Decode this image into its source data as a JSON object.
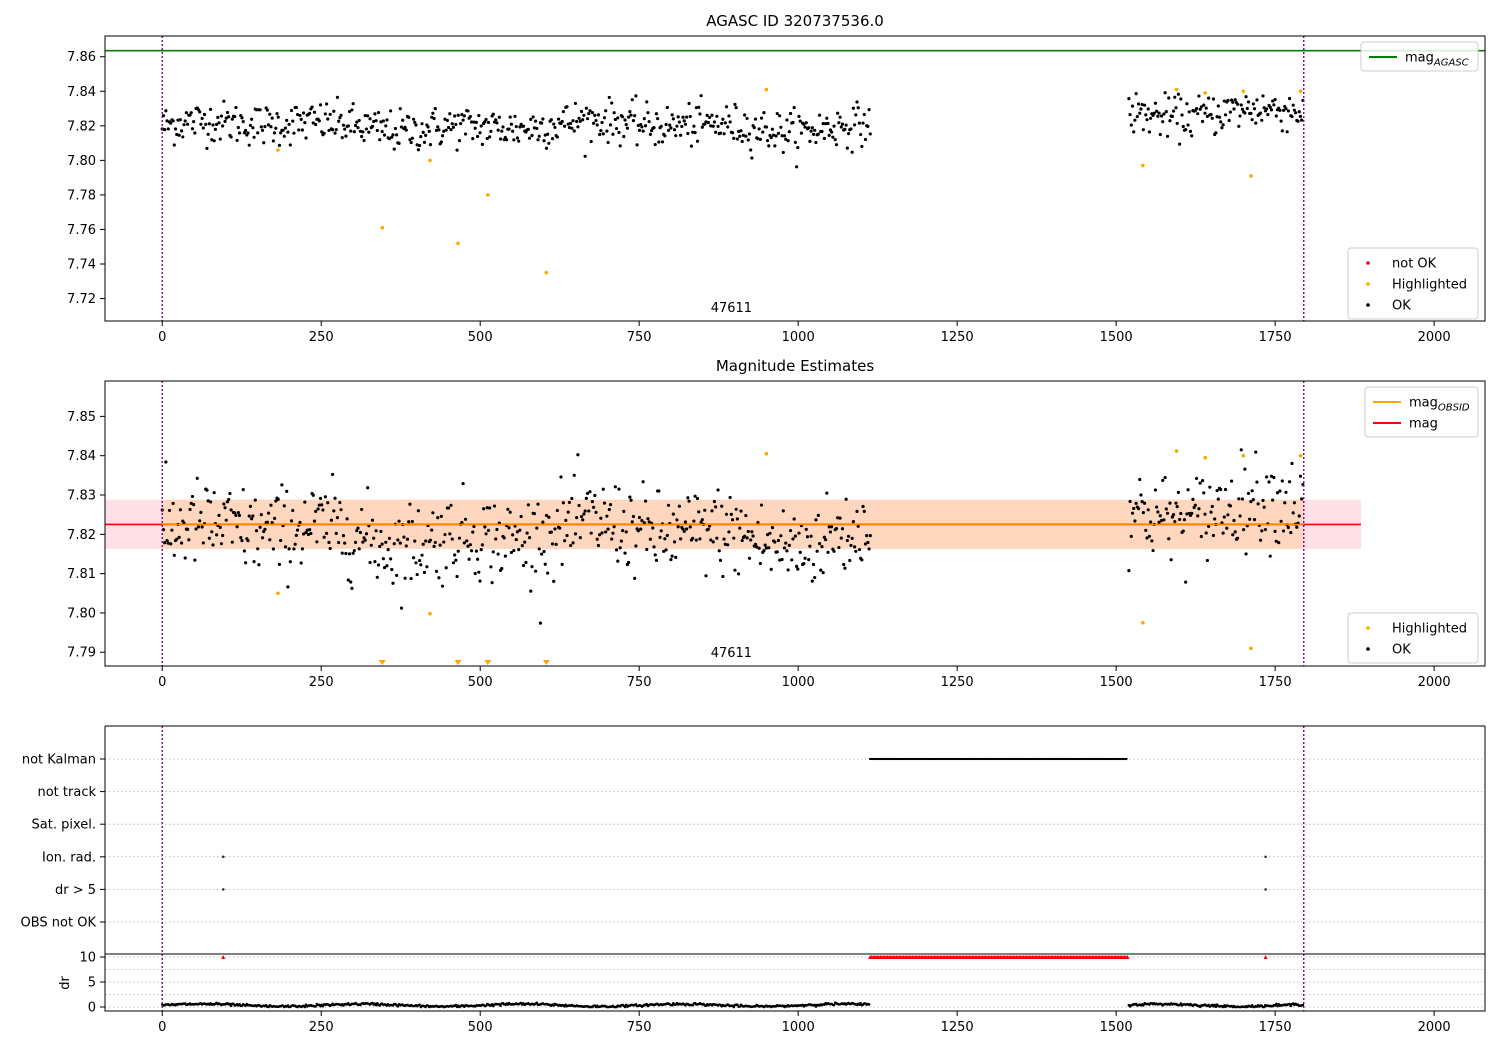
{
  "chart_data": [
    {
      "id": "top",
      "type": "scatter",
      "title": "AGASC ID 320737536.0",
      "xlim": [
        -90,
        2080
      ],
      "ylim": [
        7.707,
        7.872
      ],
      "xticks": [
        0,
        250,
        500,
        750,
        1000,
        1250,
        1500,
        1750,
        2000
      ],
      "yticks": [
        7.72,
        7.74,
        7.76,
        7.78,
        7.8,
        7.82,
        7.84,
        7.86
      ],
      "ytick_labels": [
        "7.72",
        "7.74",
        "7.76",
        "7.78",
        "7.80",
        "7.82",
        "7.84",
        "7.86"
      ],
      "obsid_label": {
        "text": "47611",
        "x": 895
      },
      "vlines": [
        0,
        1795
      ],
      "hline": {
        "name": "mag_AGASC",
        "y": 7.8635,
        "x0": -90,
        "x1": 2080,
        "color": "#008000"
      },
      "legend": {
        "top_right": [
          {
            "label": "mag",
            "sub": "AGASC",
            "color": "#008000",
            "kind": "line"
          }
        ],
        "bottom_right": [
          {
            "label": "not OK",
            "color": "#ff0000",
            "kind": "dot"
          },
          {
            "label": "Highlighted",
            "color": "#ffa500",
            "kind": "dot"
          },
          {
            "label": "OK",
            "color": "#000000",
            "kind": "dot"
          }
        ]
      },
      "ok_segments": [
        {
          "x0": 0,
          "x1": 1115,
          "center": 7.82,
          "spread": 0.006
        },
        {
          "x0": 1520,
          "x1": 1795,
          "center": 7.828,
          "spread": 0.006
        }
      ],
      "highlighted": [
        {
          "x": 182,
          "y": 7.806
        },
        {
          "x": 346,
          "y": 7.761
        },
        {
          "x": 421,
          "y": 7.8
        },
        {
          "x": 465,
          "y": 7.752
        },
        {
          "x": 512,
          "y": 7.78
        },
        {
          "x": 604,
          "y": 7.735
        },
        {
          "x": 950,
          "y": 7.841
        },
        {
          "x": 1542,
          "y": 7.797
        },
        {
          "x": 1595,
          "y": 7.841
        },
        {
          "x": 1640,
          "y": 7.839
        },
        {
          "x": 1700,
          "y": 7.84
        },
        {
          "x": 1712,
          "y": 7.791
        },
        {
          "x": 1790,
          "y": 7.84
        }
      ]
    },
    {
      "id": "middle",
      "type": "scatter",
      "title": "Magnitude Estimates",
      "xlim": [
        -90,
        2080
      ],
      "ylim": [
        7.7865,
        7.859
      ],
      "xticks": [
        0,
        250,
        500,
        750,
        1000,
        1250,
        1500,
        1750,
        2000
      ],
      "yticks": [
        7.79,
        7.8,
        7.81,
        7.82,
        7.83,
        7.84,
        7.85
      ],
      "ytick_labels": [
        "7.79",
        "7.80",
        "7.81",
        "7.82",
        "7.83",
        "7.84",
        "7.85"
      ],
      "obsid_label": {
        "text": "47611",
        "x": 895
      },
      "vlines": [
        0,
        1795
      ],
      "band": {
        "y0": 7.8163,
        "y1": 7.8288,
        "x0": -90,
        "x1": 1885
      },
      "band_inner": {
        "y0": 7.8163,
        "y1": 7.8288,
        "x0": 0,
        "x1": 1795
      },
      "hline_mag": {
        "y": 7.8225,
        "x0": -90,
        "x1": 1885,
        "color": "#ff0000"
      },
      "hline_obsid": {
        "y": 7.8225,
        "x0": 0,
        "x1": 1795,
        "color": "#ffa500"
      },
      "legend": {
        "top_right": [
          {
            "label": "mag",
            "sub": "OBSID",
            "color": "#ffa500",
            "kind": "line"
          },
          {
            "label": "mag",
            "sub": "",
            "color": "#ff0000",
            "kind": "line"
          }
        ],
        "bottom_right": [
          {
            "label": "Highlighted",
            "color": "#ffa500",
            "kind": "dot"
          },
          {
            "label": "OK",
            "color": "#000000",
            "kind": "dot"
          }
        ]
      },
      "ok_segments": [
        {
          "x0": 0,
          "x1": 1115,
          "center": 7.82,
          "spread": 0.0055
        },
        {
          "x0": 1520,
          "x1": 1795,
          "center": 7.827,
          "spread": 0.0055
        }
      ],
      "highlighted": [
        {
          "x": 182,
          "y": 7.805
        },
        {
          "x": 421,
          "y": 7.7998
        },
        {
          "x": 950,
          "y": 7.8405
        },
        {
          "x": 1542,
          "y": 7.7975
        },
        {
          "x": 1595,
          "y": 7.8412
        },
        {
          "x": 1640,
          "y": 7.8395
        },
        {
          "x": 1700,
          "y": 7.84
        },
        {
          "x": 1712,
          "y": 7.791
        },
        {
          "x": 1790,
          "y": 7.84
        }
      ],
      "out_of_range": [
        346,
        465,
        512,
        604
      ]
    },
    {
      "id": "flags",
      "type": "scatter",
      "xlim": [
        -90,
        2080
      ],
      "xticks": [
        0,
        250,
        500,
        750,
        1000,
        1250,
        1500,
        1750,
        2000
      ],
      "vlines": [
        0,
        1795
      ],
      "categories": [
        "not Kalman",
        "not track",
        "Sat. pixel.",
        "Ion. rad.",
        "dr > 5",
        "OBS not OK"
      ],
      "flag_points": [
        {
          "category": "not Kalman",
          "x0": 1113,
          "x1": 1518
        },
        {
          "category": "Ion. rad.",
          "x": 96
        },
        {
          "category": "Ion. rad.",
          "x": 1735
        },
        {
          "category": "dr > 5",
          "x": 96
        },
        {
          "category": "dr > 5",
          "x": 1735
        }
      ]
    },
    {
      "id": "dr",
      "type": "scatter",
      "ylabel": "dr",
      "xlim": [
        -90,
        2080
      ],
      "ylim": [
        -0.8,
        10.6
      ],
      "xticks": [
        0,
        250,
        500,
        750,
        1000,
        1250,
        1500,
        1750,
        2000
      ],
      "xtick_labels": [
        "0",
        "250",
        "500",
        "750",
        "1000",
        "1250",
        "1500",
        "1750",
        "2000"
      ],
      "yticks": [
        0,
        5,
        10
      ],
      "ytick_labels": [
        "0",
        "5",
        "10"
      ],
      "vlines": [
        0,
        1795
      ],
      "dr_segments": [
        {
          "x0": 0,
          "x1": 1113,
          "level": 0.35
        },
        {
          "x0": 1520,
          "x1": 1795,
          "level": 0.35
        }
      ],
      "capped_points": [
        {
          "x0": 1113,
          "x1": 1518,
          "y": 10
        },
        {
          "x": 96,
          "y": 10
        },
        {
          "x": 1735,
          "y": 10
        }
      ]
    }
  ]
}
